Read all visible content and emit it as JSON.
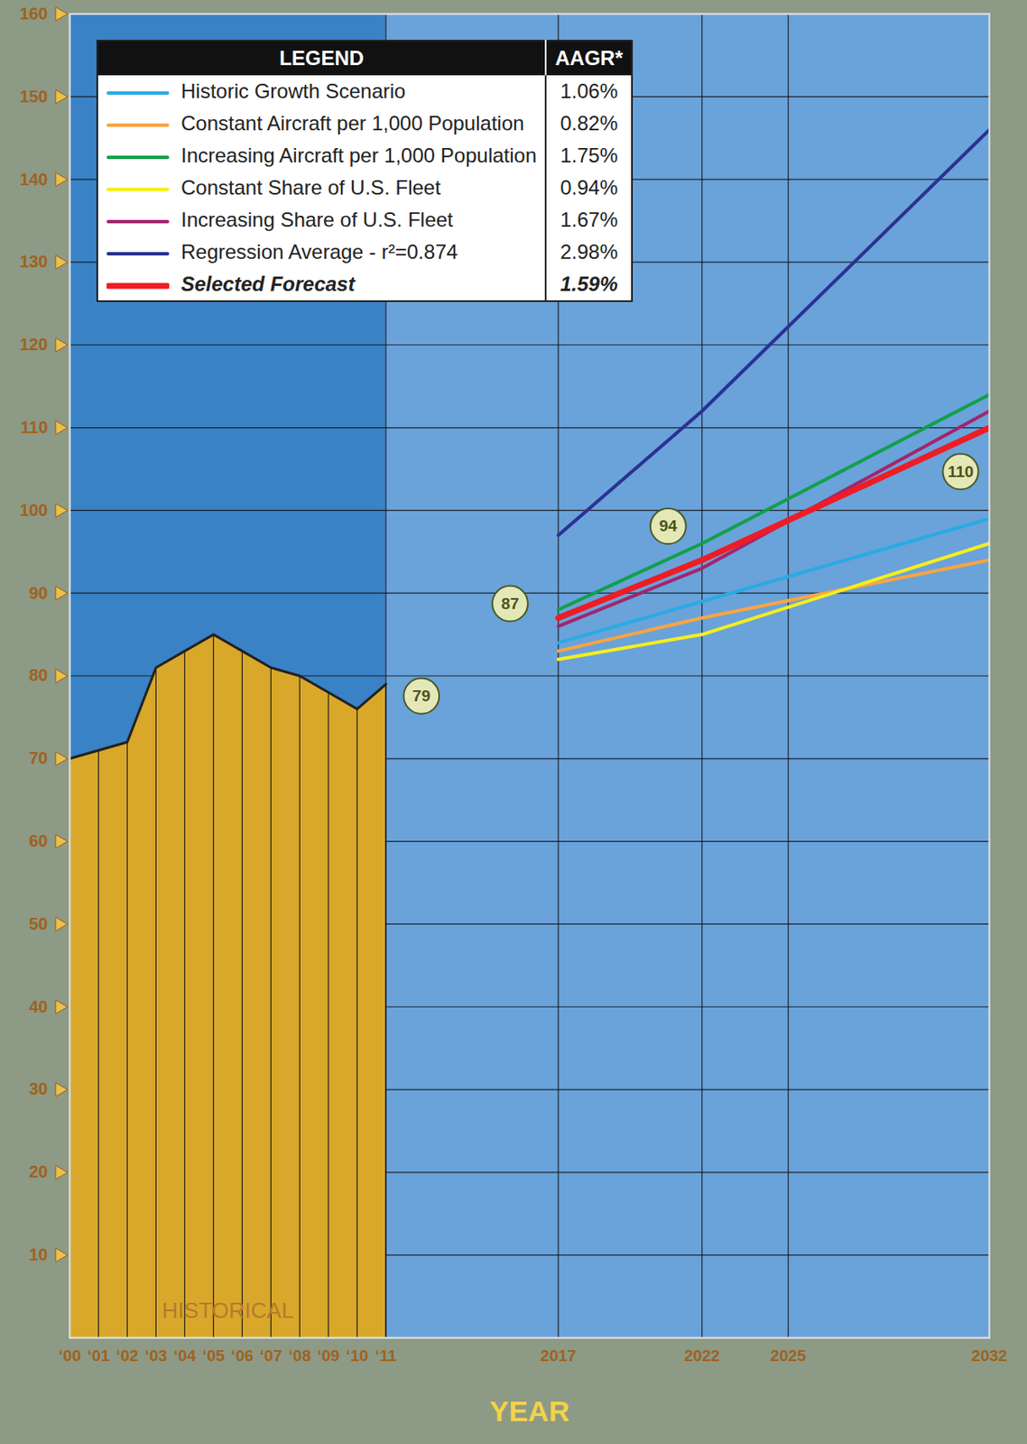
{
  "chart_data": {
    "type": "line",
    "x_label": "YEAR",
    "xlim": [
      2000,
      2032
    ],
    "ylim": [
      0,
      160
    ],
    "xticks": [
      {
        "value": 2000,
        "label": "‘00"
      },
      {
        "value": 2001,
        "label": "‘01"
      },
      {
        "value": 2002,
        "label": "‘02"
      },
      {
        "value": 2003,
        "label": "‘03"
      },
      {
        "value": 2004,
        "label": "‘04"
      },
      {
        "value": 2005,
        "label": "‘05"
      },
      {
        "value": 2006,
        "label": "‘06"
      },
      {
        "value": 2007,
        "label": "‘07"
      },
      {
        "value": 2008,
        "label": "‘08"
      },
      {
        "value": 2009,
        "label": "‘09"
      },
      {
        "value": 2010,
        "label": "‘10"
      },
      {
        "value": 2011,
        "label": "‘11"
      },
      2017,
      2022,
      2025,
      2032
    ],
    "yticks": [
      10,
      20,
      30,
      40,
      50,
      60,
      70,
      80,
      90,
      100,
      110,
      120,
      130,
      140,
      150,
      160
    ],
    "grid": true,
    "legend": "top-left",
    "legend_title": "LEGEND",
    "legend_value_header": "AAGR*",
    "historical": {
      "name": "HISTORICAL",
      "type": "area",
      "color": "#d9a82a",
      "x": [
        2000,
        2001,
        2002,
        2003,
        2004,
        2005,
        2006,
        2007,
        2008,
        2009,
        2010,
        2011
      ],
      "values": [
        70,
        71,
        72,
        81,
        83,
        85,
        83,
        81,
        80,
        78,
        76,
        79
      ]
    },
    "series": [
      {
        "name": "Historic Growth Scenario",
        "color": "#29abe2",
        "aagr": "1.06%",
        "x": [
          2017,
          2022,
          2032
        ],
        "values": [
          84,
          89,
          99
        ]
      },
      {
        "name": "Constant Aircraft per 1,000 Population",
        "color": "#f7a541",
        "aagr": "0.82%",
        "x": [
          2017,
          2022,
          2032
        ],
        "values": [
          83,
          87,
          94
        ]
      },
      {
        "name": "Increasing Aircraft per 1,000 Population",
        "color": "#10a04a",
        "aagr": "1.75%",
        "x": [
          2017,
          2022,
          2032
        ],
        "values": [
          88,
          96,
          114
        ]
      },
      {
        "name": "Constant Share of U.S. Fleet",
        "color": "#f5ee1e",
        "aagr": "0.94%",
        "x": [
          2017,
          2022,
          2032
        ],
        "values": [
          82,
          85,
          96
        ]
      },
      {
        "name": "Increasing Share of U.S. Fleet",
        "color": "#a0266e",
        "aagr": "1.67%",
        "x": [
          2017,
          2022,
          2032
        ],
        "values": [
          86,
          93,
          112
        ]
      },
      {
        "name": "Regression Average - r²=0.874",
        "color": "#2b3192",
        "aagr": "2.98%",
        "x": [
          2017,
          2022,
          2032
        ],
        "values": [
          97,
          112,
          146
        ]
      },
      {
        "name": "Selected Forecast",
        "color": "#ee1c25",
        "aagr": "1.59%",
        "x": [
          2017,
          2022,
          2032
        ],
        "values": [
          87,
          94,
          110
        ]
      }
    ],
    "annotations": [
      {
        "x": 2011,
        "y": 79,
        "text": "79"
      },
      {
        "x": 2017,
        "y": 87,
        "text": "87"
      },
      {
        "x": 2022,
        "y": 94,
        "text": "94"
      },
      {
        "x": 2032,
        "y": 110,
        "text": "110"
      }
    ]
  }
}
